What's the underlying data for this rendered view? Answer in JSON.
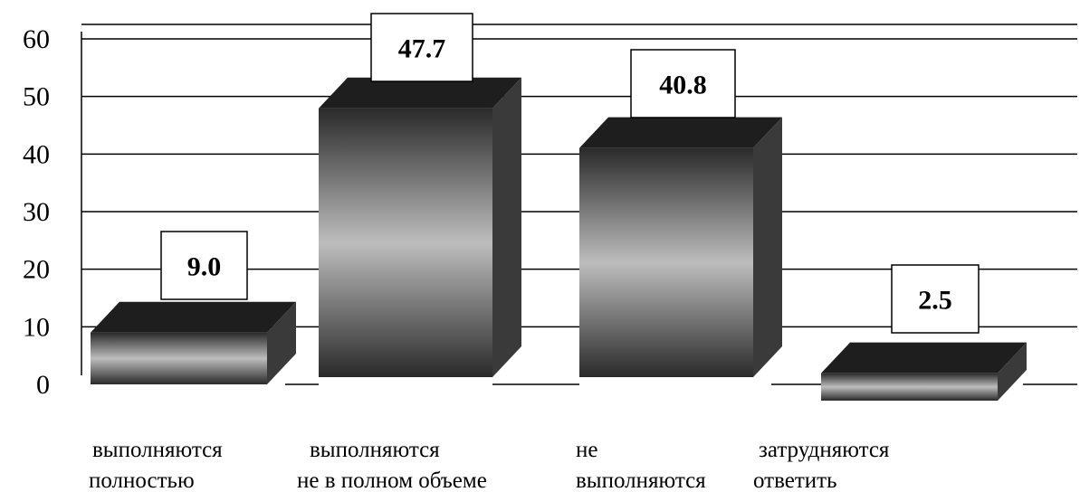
{
  "chart_data": {
    "type": "bar",
    "title": "",
    "xlabel": "",
    "ylabel": "",
    "ylim": [
      0,
      60
    ],
    "yticks": [
      0,
      10,
      20,
      30,
      40,
      50,
      60
    ],
    "grid": true,
    "legend": "none",
    "categories": [
      [
        "выполняются",
        "полностью"
      ],
      [
        "выполняются",
        "не в полном объеме"
      ],
      [
        "не",
        "выполняются"
      ],
      [
        "затрудняются",
        "ответить"
      ]
    ],
    "values": [
      9.0,
      47.7,
      40.8,
      2.5
    ],
    "data_labels": [
      "9.0",
      "47.7",
      "40.8",
      "2.5"
    ],
    "colors": {
      "bar_dark": "#2a2a2a",
      "bar_light": "#bdbdbd",
      "bar_side": "#3a3a3a",
      "bar_top": "#1e1e1e",
      "grid": "#000000"
    }
  }
}
